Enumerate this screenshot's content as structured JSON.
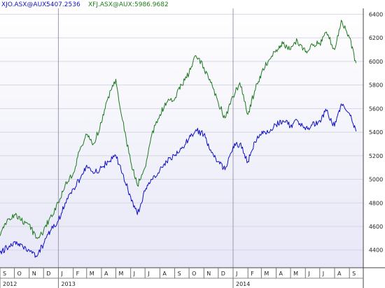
{
  "legend": [
    {
      "label": "XJO.ASX@AUX:",
      "value": "5407.2536",
      "color": "#1010c8"
    },
    {
      "label": "XFJ.ASX@AUX:",
      "value": "5986.9682",
      "color": "#1e7a1e"
    }
  ],
  "chart_data": {
    "type": "line",
    "grid": true,
    "legend_position": "top-left",
    "y_axis_position": "right",
    "ylim": [
      4250,
      6450
    ],
    "yticks": [
      4400,
      4600,
      4800,
      5000,
      5200,
      5400,
      5600,
      5800,
      6000,
      6200,
      6400
    ],
    "x_start": "2012-09-01",
    "x_end": "2014-09-30",
    "month_labels": [
      "S",
      "O",
      "N",
      "D",
      "J",
      "F",
      "M",
      "A",
      "M",
      "J",
      "J",
      "A",
      "S",
      "O",
      "N",
      "D",
      "J",
      "F",
      "M",
      "A",
      "M",
      "J",
      "J",
      "A",
      "S"
    ],
    "year_labels": [
      {
        "label": "2012",
        "month_index": 0
      },
      {
        "label": "2013",
        "month_index": 4
      },
      {
        "label": "2014",
        "month_index": 16
      }
    ],
    "series": [
      {
        "name": "XFJ.ASX@AUX",
        "color": "#1e7a1e",
        "points": [
          [
            "2012-09-01",
            4520
          ],
          [
            "2012-09-15",
            4640
          ],
          [
            "2012-10-01",
            4700
          ],
          [
            "2012-10-15",
            4650
          ],
          [
            "2012-11-01",
            4620
          ],
          [
            "2012-11-15",
            4500
          ],
          [
            "2012-12-01",
            4560
          ],
          [
            "2012-12-15",
            4680
          ],
          [
            "2013-01-01",
            4800
          ],
          [
            "2013-01-15",
            4950
          ],
          [
            "2013-02-01",
            5050
          ],
          [
            "2013-02-15",
            5250
          ],
          [
            "2013-03-01",
            5380
          ],
          [
            "2013-03-15",
            5300
          ],
          [
            "2013-04-01",
            5480
          ],
          [
            "2013-04-15",
            5700
          ],
          [
            "2013-05-01",
            5850
          ],
          [
            "2013-05-15",
            5500
          ],
          [
            "2013-06-01",
            5150
          ],
          [
            "2013-06-15",
            4950
          ],
          [
            "2013-07-01",
            5100
          ],
          [
            "2013-07-15",
            5380
          ],
          [
            "2013-08-01",
            5550
          ],
          [
            "2013-08-15",
            5650
          ],
          [
            "2013-09-01",
            5680
          ],
          [
            "2013-09-15",
            5800
          ],
          [
            "2013-10-01",
            5900
          ],
          [
            "2013-10-15",
            6050
          ],
          [
            "2013-11-01",
            5950
          ],
          [
            "2013-11-15",
            5820
          ],
          [
            "2013-12-01",
            5650
          ],
          [
            "2013-12-15",
            5520
          ],
          [
            "2014-01-01",
            5700
          ],
          [
            "2014-01-15",
            5820
          ],
          [
            "2014-02-01",
            5550
          ],
          [
            "2014-02-15",
            5750
          ],
          [
            "2014-03-01",
            5900
          ],
          [
            "2014-03-15",
            6000
          ],
          [
            "2014-04-01",
            6100
          ],
          [
            "2014-04-15",
            6150
          ],
          [
            "2014-05-01",
            6100
          ],
          [
            "2014-05-15",
            6180
          ],
          [
            "2014-06-01",
            6080
          ],
          [
            "2014-06-15",
            6150
          ],
          [
            "2014-07-01",
            6150
          ],
          [
            "2014-07-15",
            6250
          ],
          [
            "2014-08-01",
            6100
          ],
          [
            "2014-08-15",
            6350
          ],
          [
            "2014-09-01",
            6200
          ],
          [
            "2014-09-15",
            5986
          ]
        ]
      },
      {
        "name": "XJO.ASX@AUX",
        "color": "#1010c8",
        "points": [
          [
            "2012-09-01",
            4380
          ],
          [
            "2012-09-15",
            4420
          ],
          [
            "2012-10-01",
            4470
          ],
          [
            "2012-10-15",
            4450
          ],
          [
            "2012-11-01",
            4400
          ],
          [
            "2012-11-15",
            4350
          ],
          [
            "2012-12-01",
            4450
          ],
          [
            "2012-12-15",
            4560
          ],
          [
            "2013-01-01",
            4650
          ],
          [
            "2013-01-15",
            4800
          ],
          [
            "2013-02-01",
            4920
          ],
          [
            "2013-02-15",
            5000
          ],
          [
            "2013-03-01",
            5120
          ],
          [
            "2013-03-15",
            5050
          ],
          [
            "2013-04-01",
            5100
          ],
          [
            "2013-04-15",
            5150
          ],
          [
            "2013-05-01",
            5200
          ],
          [
            "2013-05-15",
            5050
          ],
          [
            "2013-06-01",
            4850
          ],
          [
            "2013-06-15",
            4700
          ],
          [
            "2013-07-01",
            4900
          ],
          [
            "2013-07-15",
            5000
          ],
          [
            "2013-08-01",
            5080
          ],
          [
            "2013-08-15",
            5150
          ],
          [
            "2013-09-01",
            5200
          ],
          [
            "2013-09-15",
            5260
          ],
          [
            "2013-10-01",
            5350
          ],
          [
            "2013-10-15",
            5420
          ],
          [
            "2013-11-01",
            5380
          ],
          [
            "2013-11-15",
            5250
          ],
          [
            "2013-12-01",
            5150
          ],
          [
            "2013-12-15",
            5080
          ],
          [
            "2014-01-01",
            5280
          ],
          [
            "2014-01-15",
            5300
          ],
          [
            "2014-02-01",
            5150
          ],
          [
            "2014-02-15",
            5320
          ],
          [
            "2014-03-01",
            5380
          ],
          [
            "2014-03-15",
            5400
          ],
          [
            "2014-04-01",
            5460
          ],
          [
            "2014-04-15",
            5500
          ],
          [
            "2014-05-01",
            5450
          ],
          [
            "2014-05-15",
            5500
          ],
          [
            "2014-06-01",
            5420
          ],
          [
            "2014-06-15",
            5460
          ],
          [
            "2014-07-01",
            5500
          ],
          [
            "2014-07-15",
            5580
          ],
          [
            "2014-08-01",
            5450
          ],
          [
            "2014-08-15",
            5640
          ],
          [
            "2014-09-01",
            5560
          ],
          [
            "2014-09-15",
            5407
          ]
        ]
      }
    ]
  }
}
